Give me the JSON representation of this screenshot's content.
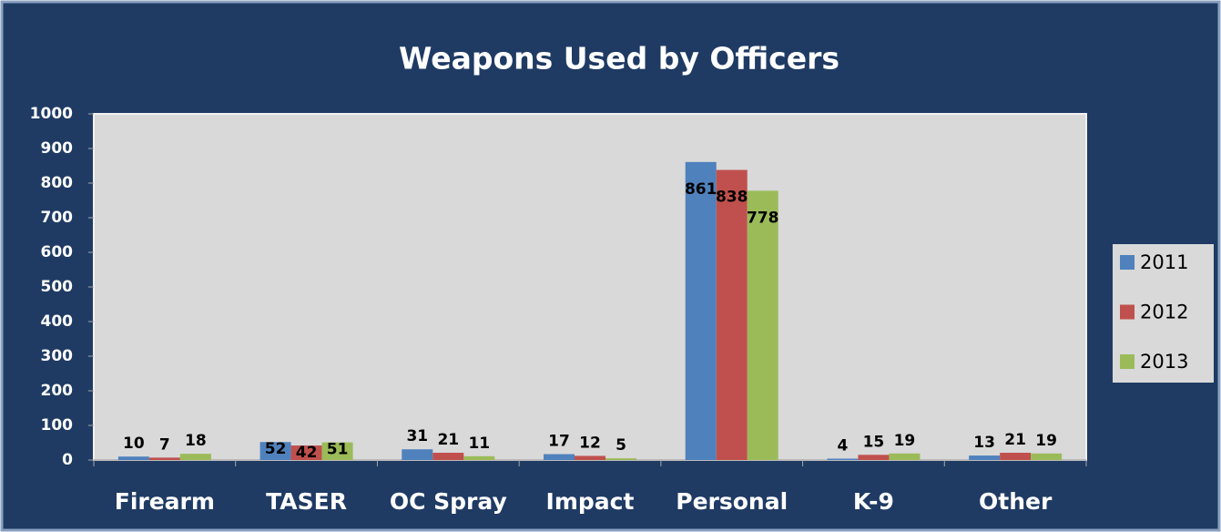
{
  "chart_data": {
    "type": "bar",
    "title": "Weapons Used by Officers",
    "categories": [
      "Firearm",
      "TASER",
      "OC Spray",
      "Impact",
      "Personal",
      "K-9",
      "Other"
    ],
    "series": [
      {
        "name": "2011",
        "color": "#4f81bd",
        "values": [
          10,
          52,
          31,
          17,
          861,
          4,
          13
        ]
      },
      {
        "name": "2012",
        "color": "#c0504d",
        "values": [
          7,
          42,
          21,
          12,
          838,
          15,
          21
        ]
      },
      {
        "name": "2013",
        "color": "#9bbb59",
        "values": [
          18,
          51,
          11,
          5,
          778,
          19,
          19
        ]
      }
    ],
    "ylim": [
      0,
      1000
    ],
    "yticks": [
      0,
      100,
      200,
      300,
      400,
      500,
      600,
      700,
      800,
      900,
      1000
    ],
    "legend": "right"
  }
}
